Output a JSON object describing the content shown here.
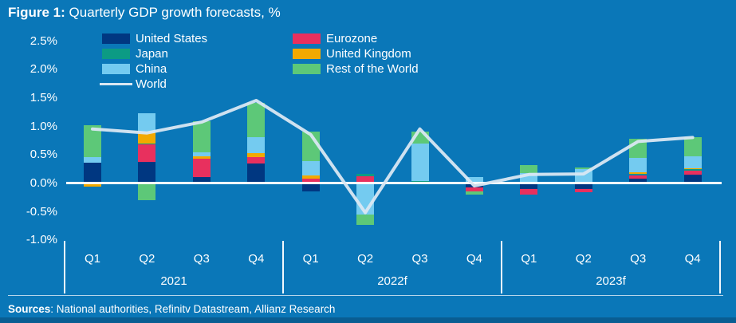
{
  "title": {
    "prefix": "Figure 1:",
    "rest": " Quarterly GDP growth forecasts, %"
  },
  "sources": {
    "prefix": "Sources",
    "rest": ": National authorities, Refinitv Datastream, Allianz Research"
  },
  "colors": {
    "background": "#0a77b8",
    "text": "#ffffff",
    "zero_line": "#ffffff",
    "world_line": "#d9e7f2"
  },
  "legend": {
    "items": [
      {
        "label": "United States",
        "color": "#003781",
        "type": "swatch",
        "col": 0,
        "row": 0
      },
      {
        "label": "Japan",
        "color": "#0c9b84",
        "type": "swatch",
        "col": 0,
        "row": 1
      },
      {
        "label": "China",
        "color": "#74cbf0",
        "type": "swatch",
        "col": 0,
        "row": 2
      },
      {
        "label": "World",
        "color": "#d9e7f2",
        "type": "line",
        "col": 0,
        "row": 3
      },
      {
        "label": "Eurozone",
        "color": "#e8305e",
        "type": "swatch",
        "col": 1,
        "row": 0
      },
      {
        "label": "United Kingdom",
        "color": "#f2a900",
        "type": "swatch",
        "col": 1,
        "row": 1
      },
      {
        "label": "Rest of the World",
        "color": "#5dc878",
        "type": "swatch",
        "col": 1,
        "row": 2
      }
    ]
  },
  "axis": {
    "yticks": [
      "2.5%",
      "2.0%",
      "1.5%",
      "1.0%",
      "0.5%",
      "0.0%",
      "-0.5%",
      "-1.0%"
    ],
    "quarters": [
      "Q1",
      "Q2",
      "Q3",
      "Q4",
      "Q1",
      "Q2",
      "Q3",
      "Q4",
      "Q1",
      "Q2",
      "Q3",
      "Q4"
    ],
    "years": [
      "2021",
      "2022f",
      "2023f"
    ]
  },
  "chart_data": {
    "type": "bar",
    "subtype": "stacked-bar-with-line",
    "title": "Figure 1: Quarterly GDP growth forecasts, %",
    "unit": "%",
    "categories": [
      "Q1",
      "Q2",
      "Q3",
      "Q4",
      "Q1",
      "Q2",
      "Q3",
      "Q4",
      "Q1",
      "Q2",
      "Q3",
      "Q4"
    ],
    "year_groups": [
      "2021",
      "2022f",
      "2023f"
    ],
    "ylim": [
      -1.0,
      2.5
    ],
    "ytick_values": [
      2.5,
      2.0,
      1.5,
      1.0,
      0.5,
      0.0,
      -0.5,
      -1.0
    ],
    "ytick_labels": [
      "2.5%",
      "2.0%",
      "1.5%",
      "1.0%",
      "0.5%",
      "0.0%",
      "-0.5%",
      "-1.0%"
    ],
    "grid": "zero-line-only",
    "legend_position": "top-left, two columns",
    "series": [
      {
        "name": "United States",
        "color": "#003781",
        "values": [
          0.36,
          0.37,
          0.11,
          0.35,
          -0.14,
          0.0,
          0.0,
          -0.08,
          -0.1,
          -0.1,
          0.08,
          0.15
        ]
      },
      {
        "name": "Eurozone",
        "color": "#e8305e",
        "values": [
          0.0,
          0.31,
          0.32,
          0.11,
          0.08,
          0.12,
          0.0,
          -0.07,
          -0.1,
          -0.06,
          0.06,
          0.07
        ]
      },
      {
        "name": "Japan",
        "color": "#0c9b84",
        "values": [
          0.0,
          0.02,
          0.0,
          0.0,
          0.0,
          0.04,
          0.03,
          0.0,
          0.0,
          0.0,
          0.02,
          0.02
        ]
      },
      {
        "name": "United Kingdom",
        "color": "#f2a900",
        "values": [
          -0.06,
          0.19,
          0.04,
          0.07,
          0.05,
          0.0,
          0.0,
          0.0,
          0.0,
          0.0,
          0.03,
          0.02
        ]
      },
      {
        "name": "China",
        "color": "#74cbf0",
        "values": [
          0.1,
          0.33,
          0.07,
          0.28,
          0.25,
          -0.55,
          0.66,
          0.1,
          0.18,
          0.24,
          0.25,
          0.21
        ]
      },
      {
        "name": "Rest of the World",
        "color": "#5dc878",
        "values": [
          0.55,
          -0.3,
          0.54,
          0.6,
          0.53,
          -0.19,
          0.22,
          -0.06,
          0.13,
          0.04,
          0.34,
          0.33
        ]
      }
    ],
    "line_series": {
      "name": "World",
      "color": "#d9e7f2",
      "values": [
        0.95,
        0.88,
        1.07,
        1.45,
        0.85,
        -0.52,
        0.95,
        -0.05,
        0.15,
        0.16,
        0.73,
        0.8
      ]
    }
  }
}
